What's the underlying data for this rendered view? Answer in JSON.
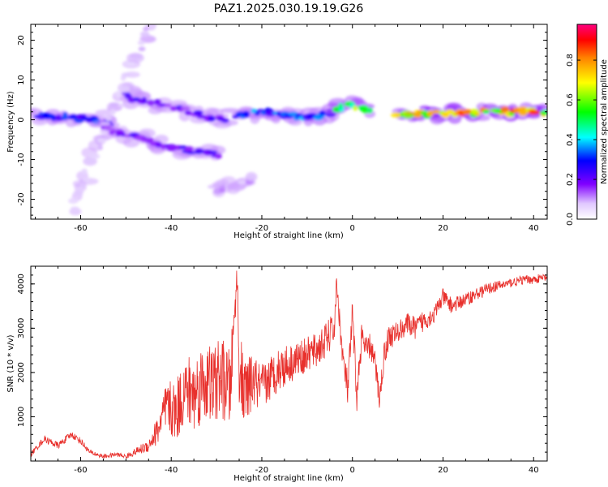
{
  "title": "PAZ1.2025.030.19.19.G26",
  "chart_data": [
    {
      "type": "heatmap",
      "title": "PAZ1.2025.030.19.19.G26",
      "xlabel": "Height of straight line (km)",
      "ylabel": "Frequency (Hz)",
      "xlim": [
        -71,
        43
      ],
      "ylim": [
        -25,
        24
      ],
      "xticks": [
        -60,
        -40,
        -20,
        0,
        20,
        40
      ],
      "yticks": [
        -20,
        -10,
        0,
        10,
        20
      ],
      "xtick_labels": [
        "-60",
        "-40",
        "-20",
        "0",
        "20",
        "40"
      ],
      "ytick_labels": [
        "-20",
        "-10",
        "0",
        "10",
        "20"
      ],
      "colorbar": {
        "label": "Normalized spectral amplitude",
        "range": [
          0,
          0.98
        ],
        "ticks": [
          0.0,
          0.2,
          0.4,
          0.6,
          0.8
        ],
        "tick_labels": [
          "0.0",
          "0.2",
          "0.4",
          "0.6",
          "0.8"
        ],
        "colormap": "rainbow (violet-blue-cyan-green-yellow-red-magenta)"
      },
      "features": [
        {
          "x": [
            -70,
            -60,
            -53
          ],
          "y": [
            1,
            0.5,
            -1
          ],
          "amplitude": 0.35
        },
        {
          "x": [
            -55,
            -40,
            -30
          ],
          "y": [
            -2,
            -7,
            -9
          ],
          "amplitude": 0.25
        },
        {
          "x": [
            -50,
            -40,
            -28
          ],
          "y": [
            6,
            3,
            0
          ],
          "amplitude": 0.25
        },
        {
          "x": [
            -26,
            -20,
            -10,
            -4
          ],
          "y": [
            1,
            2,
            0.5,
            2
          ],
          "amplitude": 0.4
        },
        {
          "x": [
            -4,
            0,
            4
          ],
          "y": [
            3,
            4,
            2.5
          ],
          "amplitude": 0.7
        },
        {
          "x": [
            10,
            20,
            30,
            43
          ],
          "y": [
            1.5,
            1.5,
            2,
            2
          ],
          "amplitude": 0.9
        },
        {
          "x": [
            -62,
            -45
          ],
          "y": [
            -22,
            23
          ],
          "amplitude": 0.1
        },
        {
          "x": [
            -30,
            -22
          ],
          "y": [
            -18,
            -15
          ],
          "amplitude": 0.12
        }
      ]
    },
    {
      "type": "line",
      "xlabel": "Height of straight line (km)",
      "ylabel": "SNR (10 * v/v)",
      "xlim": [
        -71,
        43
      ],
      "ylim": [
        0,
        4400
      ],
      "xticks": [
        -60,
        -40,
        -20,
        0,
        20,
        40
      ],
      "yticks": [
        1000,
        2000,
        3000,
        4000
      ],
      "xtick_labels": [
        "-60",
        "-40",
        "-20",
        "0",
        "20",
        "40"
      ],
      "ytick_labels": [
        "1000",
        "2000",
        "3000",
        "4000"
      ],
      "color": "#e8302c",
      "series": [
        {
          "x": [
            -71,
            -68,
            -65,
            -62,
            -60,
            -58,
            -55,
            -52,
            -50,
            -48,
            -45,
            -43,
            -41,
            -39,
            -37,
            -35,
            -33,
            -31,
            -29,
            -27,
            -25.5,
            -25,
            -24,
            -22,
            -20,
            -18,
            -16,
            -14,
            -12,
            -10,
            -8,
            -6,
            -4,
            -3.5,
            -2,
            -1,
            0,
            1,
            2,
            3,
            4,
            5,
            6,
            7,
            8,
            10,
            12,
            14,
            16,
            18,
            20,
            22,
            24,
            26,
            28,
            30,
            32,
            34,
            36,
            38,
            40,
            43
          ],
          "y": [
            150,
            500,
            350,
            600,
            450,
            200,
            100,
            150,
            100,
            200,
            350,
            700,
            1200,
            1100,
            1600,
            1500,
            1800,
            1700,
            1900,
            1600,
            4200,
            2200,
            1500,
            1800,
            1600,
            1900,
            2100,
            2200,
            2300,
            2400,
            2500,
            2700,
            3000,
            4000,
            2200,
            1600,
            3300,
            1400,
            2800,
            2500,
            2600,
            2200,
            1400,
            2400,
            2800,
            2900,
            3100,
            3000,
            3200,
            3300,
            3700,
            3500,
            3600,
            3700,
            3800,
            3900,
            3950,
            4000,
            4050,
            4100,
            4100,
            4150
          ],
          "jitter_scale": [
            60,
            80,
            80,
            80,
            80,
            60,
            50,
            50,
            50,
            80,
            150,
            350,
            600,
            700,
            800,
            900,
            900,
            900,
            900,
            900,
            300,
            900,
            800,
            600,
            600,
            500,
            500,
            450,
            400,
            400,
            400,
            400,
            400,
            200,
            400,
            400,
            400,
            350,
            350,
            300,
            300,
            300,
            300,
            300,
            300,
            250,
            250,
            250,
            250,
            200,
            200,
            180,
            160,
            150,
            140,
            130,
            120,
            110,
            100,
            100,
            100,
            100
          ]
        }
      ]
    }
  ]
}
